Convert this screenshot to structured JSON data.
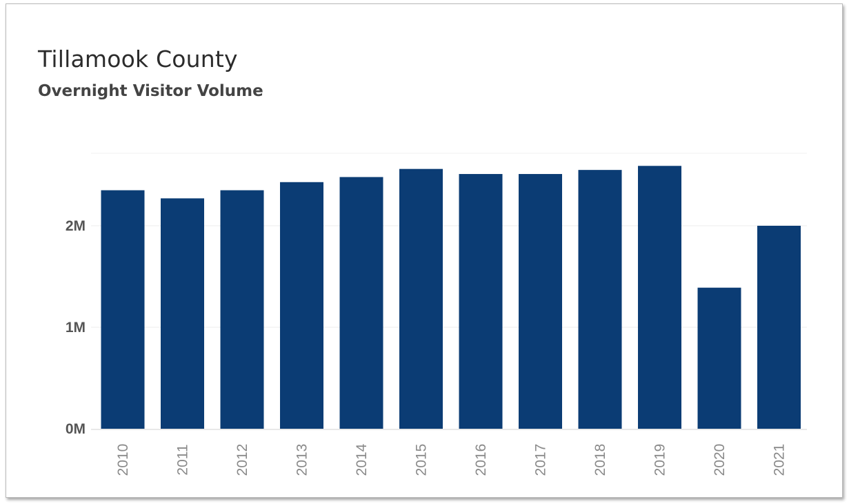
{
  "chart_data": {
    "type": "bar",
    "title": "Tillamook County",
    "subtitle": "Overnight Visitor Volume",
    "xlabel": "",
    "ylabel": "",
    "categories": [
      "2010",
      "2011",
      "2012",
      "2013",
      "2014",
      "2015",
      "2016",
      "2017",
      "2018",
      "2019",
      "2020",
      "2021"
    ],
    "values": [
      2350000,
      2270000,
      2350000,
      2430000,
      2480000,
      2560000,
      2510000,
      2510000,
      2550000,
      2590000,
      1390000,
      2000000
    ],
    "ylim": [
      0,
      2650000
    ],
    "yticks": [
      {
        "value": 0,
        "label": "0M"
      },
      {
        "value": 1000000,
        "label": "1M"
      },
      {
        "value": 2000000,
        "label": "2M"
      }
    ],
    "bar_color": "#0b3c74",
    "grid": true,
    "legend": "none"
  }
}
